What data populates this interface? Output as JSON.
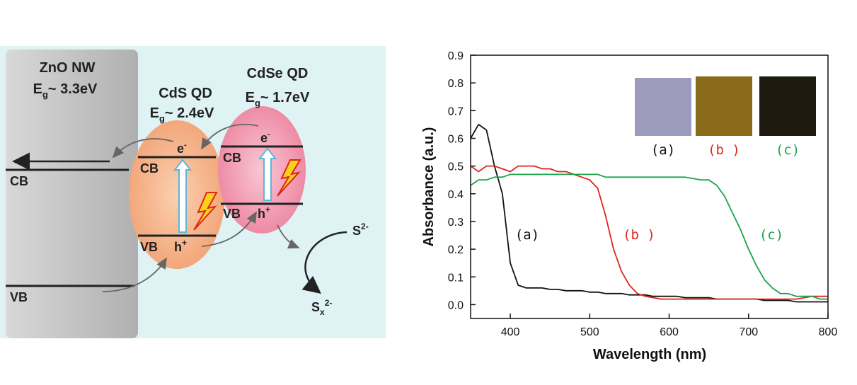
{
  "diagram": {
    "zno": {
      "name": "ZnO NW",
      "gap": {
        "symbol": "E",
        "sub": "g",
        "value": "~ 3.3eV"
      },
      "cb": "CB",
      "vb": "VB"
    },
    "cds": {
      "name": "CdS QD",
      "gap": {
        "symbol": "E",
        "sub": "g",
        "value": "~ 2.4eV"
      },
      "cb": "CB",
      "vb": "VB",
      "electron": {
        "base": "e",
        "sup": "-"
      },
      "hole": {
        "base": "h",
        "sup": "+"
      }
    },
    "cdse": {
      "name": "CdSe QD",
      "gap": {
        "symbol": "E",
        "sub": "g",
        "value": "~ 1.7eV"
      },
      "cb": "CB",
      "vb": "VB",
      "electron": {
        "base": "e",
        "sup": "-"
      },
      "hole": {
        "base": "h",
        "sup": "+"
      }
    },
    "sulfide": {
      "base": "S",
      "sup": "2-"
    },
    "polysulfide": {
      "base": "S",
      "sub": "x",
      "sup": "2-"
    }
  },
  "chart_data": {
    "type": "line",
    "x_label": "Wavelength (nm)",
    "y_label": "Absorbance (a.u.)",
    "x": [
      350,
      360,
      370,
      380,
      390,
      400,
      410,
      420,
      430,
      440,
      450,
      460,
      470,
      480,
      490,
      500,
      510,
      520,
      530,
      540,
      550,
      560,
      570,
      580,
      590,
      600,
      610,
      620,
      630,
      640,
      650,
      660,
      670,
      680,
      690,
      700,
      710,
      720,
      730,
      740,
      750,
      760,
      770,
      780,
      790,
      800
    ],
    "series": [
      {
        "name": "(a)",
        "color": "#111111",
        "values": [
          0.6,
          0.65,
          0.63,
          0.5,
          0.4,
          0.15,
          0.07,
          0.06,
          0.06,
          0.06,
          0.055,
          0.055,
          0.05,
          0.05,
          0.05,
          0.045,
          0.045,
          0.04,
          0.04,
          0.04,
          0.035,
          0.035,
          0.035,
          0.03,
          0.03,
          0.03,
          0.03,
          0.025,
          0.025,
          0.025,
          0.025,
          0.02,
          0.02,
          0.02,
          0.02,
          0.02,
          0.02,
          0.015,
          0.015,
          0.015,
          0.015,
          0.01,
          0.01,
          0.01,
          0.01,
          0.01
        ]
      },
      {
        "name": "(b )",
        "color": "#e0241b",
        "values": [
          0.5,
          0.48,
          0.5,
          0.5,
          0.49,
          0.48,
          0.5,
          0.5,
          0.5,
          0.49,
          0.49,
          0.48,
          0.48,
          0.47,
          0.46,
          0.45,
          0.42,
          0.32,
          0.2,
          0.12,
          0.07,
          0.04,
          0.03,
          0.025,
          0.02,
          0.02,
          0.02,
          0.02,
          0.02,
          0.02,
          0.02,
          0.02,
          0.02,
          0.02,
          0.02,
          0.02,
          0.02,
          0.02,
          0.02,
          0.02,
          0.02,
          0.02,
          0.025,
          0.03,
          0.03,
          0.03
        ]
      },
      {
        "name": "(c)",
        "color": "#1aa34a",
        "values": [
          0.43,
          0.45,
          0.45,
          0.46,
          0.46,
          0.47,
          0.47,
          0.47,
          0.47,
          0.47,
          0.47,
          0.47,
          0.47,
          0.47,
          0.47,
          0.47,
          0.47,
          0.46,
          0.46,
          0.46,
          0.46,
          0.46,
          0.46,
          0.46,
          0.46,
          0.46,
          0.46,
          0.46,
          0.455,
          0.45,
          0.45,
          0.43,
          0.39,
          0.33,
          0.27,
          0.2,
          0.14,
          0.09,
          0.06,
          0.04,
          0.04,
          0.03,
          0.03,
          0.03,
          0.02,
          0.02
        ]
      }
    ],
    "xlim": [
      350,
      800
    ],
    "xticks": [
      400,
      500,
      600,
      700,
      800
    ],
    "ylim": [
      -0.05,
      0.9
    ],
    "yticks": [
      {
        "value": 0,
        "label": "0.0"
      },
      0.1,
      0.2,
      0.3,
      0.4,
      0.5,
      0.6,
      0.7,
      0.8,
      0.9
    ]
  }
}
